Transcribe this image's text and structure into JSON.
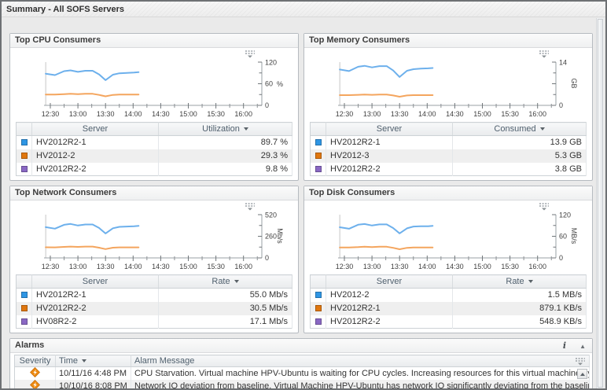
{
  "page": {
    "title": "Summary - All SOFS Servers"
  },
  "icons": {
    "info": "i",
    "collapse": "▲"
  },
  "series_colors": {
    "first": "#2f96e4",
    "second": "#e0770f",
    "third": "#8a68c4"
  },
  "panels": [
    {
      "title": "Top CPU Consumers",
      "chart": {
        "type": "line",
        "x_labels": [
          "12:30",
          "13:00",
          "13:30",
          "14:00",
          "14:30",
          "15:00",
          "15:30",
          "16:00"
        ],
        "ylim": [
          0,
          120
        ],
        "y_tick_top": "120",
        "y_tick_mid": "60",
        "y_tick_bottom": "0",
        "unit": "%",
        "unit_rotated": false,
        "x_minutes": [
          -5,
          5,
          15,
          22,
          30,
          38,
          46,
          53,
          60,
          68,
          75,
          83,
          91,
          96
        ],
        "series": [
          {
            "name": "HV2012R2-1",
            "color": "#6db0ec",
            "values": [
              88,
              84,
              95,
              97,
              93,
              96,
              96,
              86,
              70,
              85,
              89,
              90,
              91,
              92
            ]
          },
          {
            "name": "HV2012-2",
            "color": "#f4a55e",
            "values": [
              30,
              30,
              31,
              32,
              31,
              32,
              32,
              29,
              25,
              29,
              30,
              30,
              30,
              30
            ]
          }
        ]
      },
      "table": {
        "server_header": "Server",
        "value_header": "Utilization",
        "rows": [
          {
            "color": "#2f96e4",
            "server": "HV2012R2-1",
            "value": "89.7 %"
          },
          {
            "color": "#e0770f",
            "server": "HV2012-2",
            "value": "29.3 %"
          },
          {
            "color": "#8a68c4",
            "server": "HV2012R2-2",
            "value": "9.8 %"
          }
        ]
      }
    },
    {
      "title": "Top Memory Consumers",
      "chart": {
        "type": "line",
        "x_labels": [
          "12:30",
          "13:00",
          "13:30",
          "14:00",
          "14:30",
          "15:00",
          "15:30",
          "16:00"
        ],
        "ylim": [
          0,
          14
        ],
        "y_tick_top": "14",
        "y_tick_mid": "",
        "y_tick_bottom": "0",
        "unit": "GB",
        "unit_rotated": true,
        "x_minutes": [
          -5,
          5,
          15,
          22,
          30,
          38,
          46,
          53,
          60,
          68,
          75,
          83,
          91,
          96
        ],
        "series": [
          {
            "name": "HV2012R2-1",
            "color": "#6db0ec",
            "values": [
              11.6,
              11.1,
              12.5,
              12.8,
              12.3,
              12.7,
              12.7,
              11.3,
              9.2,
              11.2,
              11.7,
              11.9,
              12.0,
              12.1
            ]
          },
          {
            "name": "HV2012-3",
            "color": "#f4a55e",
            "values": [
              3.3,
              3.3,
              3.4,
              3.5,
              3.4,
              3.5,
              3.5,
              3.2,
              2.8,
              3.2,
              3.3,
              3.3,
              3.3,
              3.3
            ]
          }
        ]
      },
      "table": {
        "server_header": "Server",
        "value_header": "Consumed",
        "rows": [
          {
            "color": "#2f96e4",
            "server": "HV2012R2-1",
            "value": "13.9 GB"
          },
          {
            "color": "#e0770f",
            "server": "HV2012-3",
            "value": "5.3 GB"
          },
          {
            "color": "#8a68c4",
            "server": "HV2012R2-2",
            "value": "3.8 GB"
          }
        ]
      }
    },
    {
      "title": "Top Network Consumers",
      "chart": {
        "type": "line",
        "x_labels": [
          "12:30",
          "13:00",
          "13:30",
          "14:00",
          "14:30",
          "15:00",
          "15:30",
          "16:00"
        ],
        "ylim": [
          0,
          520
        ],
        "y_tick_top": "520",
        "y_tick_mid": "260",
        "y_tick_bottom": "0",
        "unit": "Mb/s",
        "unit_rotated": true,
        "x_minutes": [
          -5,
          5,
          15,
          22,
          30,
          38,
          46,
          53,
          60,
          68,
          75,
          83,
          91,
          96
        ],
        "series": [
          {
            "name": "HV2012R2-1",
            "color": "#6db0ec",
            "values": [
              370,
              352,
              398,
              408,
              390,
              402,
              402,
              360,
              294,
              356,
              373,
              377,
              381,
              385
            ]
          },
          {
            "name": "HV2012R2-2",
            "color": "#f4a55e",
            "values": [
              128,
              127,
              132,
              136,
              132,
              136,
              136,
              123,
              106,
              123,
              127,
              127,
              127,
              127
            ]
          }
        ]
      },
      "table": {
        "server_header": "Server",
        "value_header": "Rate",
        "rows": [
          {
            "color": "#2f96e4",
            "server": "HV2012R2-1",
            "value": "55.0 Mb/s"
          },
          {
            "color": "#e0770f",
            "server": "HV2012R2-2",
            "value": "30.5 Mb/s"
          },
          {
            "color": "#8a68c4",
            "server": "HV08R2-2",
            "value": "17.1 Mb/s"
          }
        ]
      }
    },
    {
      "title": "Top Disk Consumers",
      "chart": {
        "type": "line",
        "x_labels": [
          "12:30",
          "13:00",
          "13:30",
          "14:00",
          "14:30",
          "15:00",
          "15:30",
          "16:00"
        ],
        "ylim": [
          0,
          120
        ],
        "y_tick_top": "120",
        "y_tick_mid": "60",
        "y_tick_bottom": "0",
        "unit": "MB/s",
        "unit_rotated": true,
        "x_minutes": [
          -5,
          5,
          15,
          22,
          30,
          38,
          46,
          53,
          60,
          68,
          75,
          83,
          91,
          96
        ],
        "series": [
          {
            "name": "HV2012-2",
            "color": "#6db0ec",
            "values": [
              85,
              81,
              92,
              94,
              90,
              93,
              93,
              83,
              68,
              82,
              87,
              88,
              88,
              89
            ]
          },
          {
            "name": "HV2012R2-1",
            "color": "#f4a55e",
            "values": [
              29,
              29,
              30,
              31,
              30,
              31,
              31,
              28,
              24,
              28,
              29,
              29,
              29,
              29
            ]
          }
        ]
      },
      "table": {
        "server_header": "Server",
        "value_header": "Rate",
        "rows": [
          {
            "color": "#2f96e4",
            "server": "HV2012-2",
            "value": "1.5 MB/s"
          },
          {
            "color": "#e0770f",
            "server": "HV2012R2-1",
            "value": "879.1 KB/s"
          },
          {
            "color": "#8a68c4",
            "server": "HV2012R2-2",
            "value": "548.9 KB/s"
          }
        ]
      }
    }
  ],
  "alarms": {
    "title": "Alarms",
    "columns": {
      "severity": "Severity",
      "time": "Time",
      "message": "Alarm Message"
    },
    "rows": [
      {
        "severity": "warning",
        "time": "10/11/16 4:48 PM",
        "message": "CPU Starvation. Virtual machine HPV-Ubuntu is waiting for CPU cycles. Increasing resources for this virtual machine by adjusting t"
      },
      {
        "severity": "warning",
        "time": "10/10/16 8:08 PM",
        "message": "Network IO deviation from baseline. Virtual Machine HPV-Ubuntu has network IO significantly deviating from the baseline."
      }
    ]
  }
}
